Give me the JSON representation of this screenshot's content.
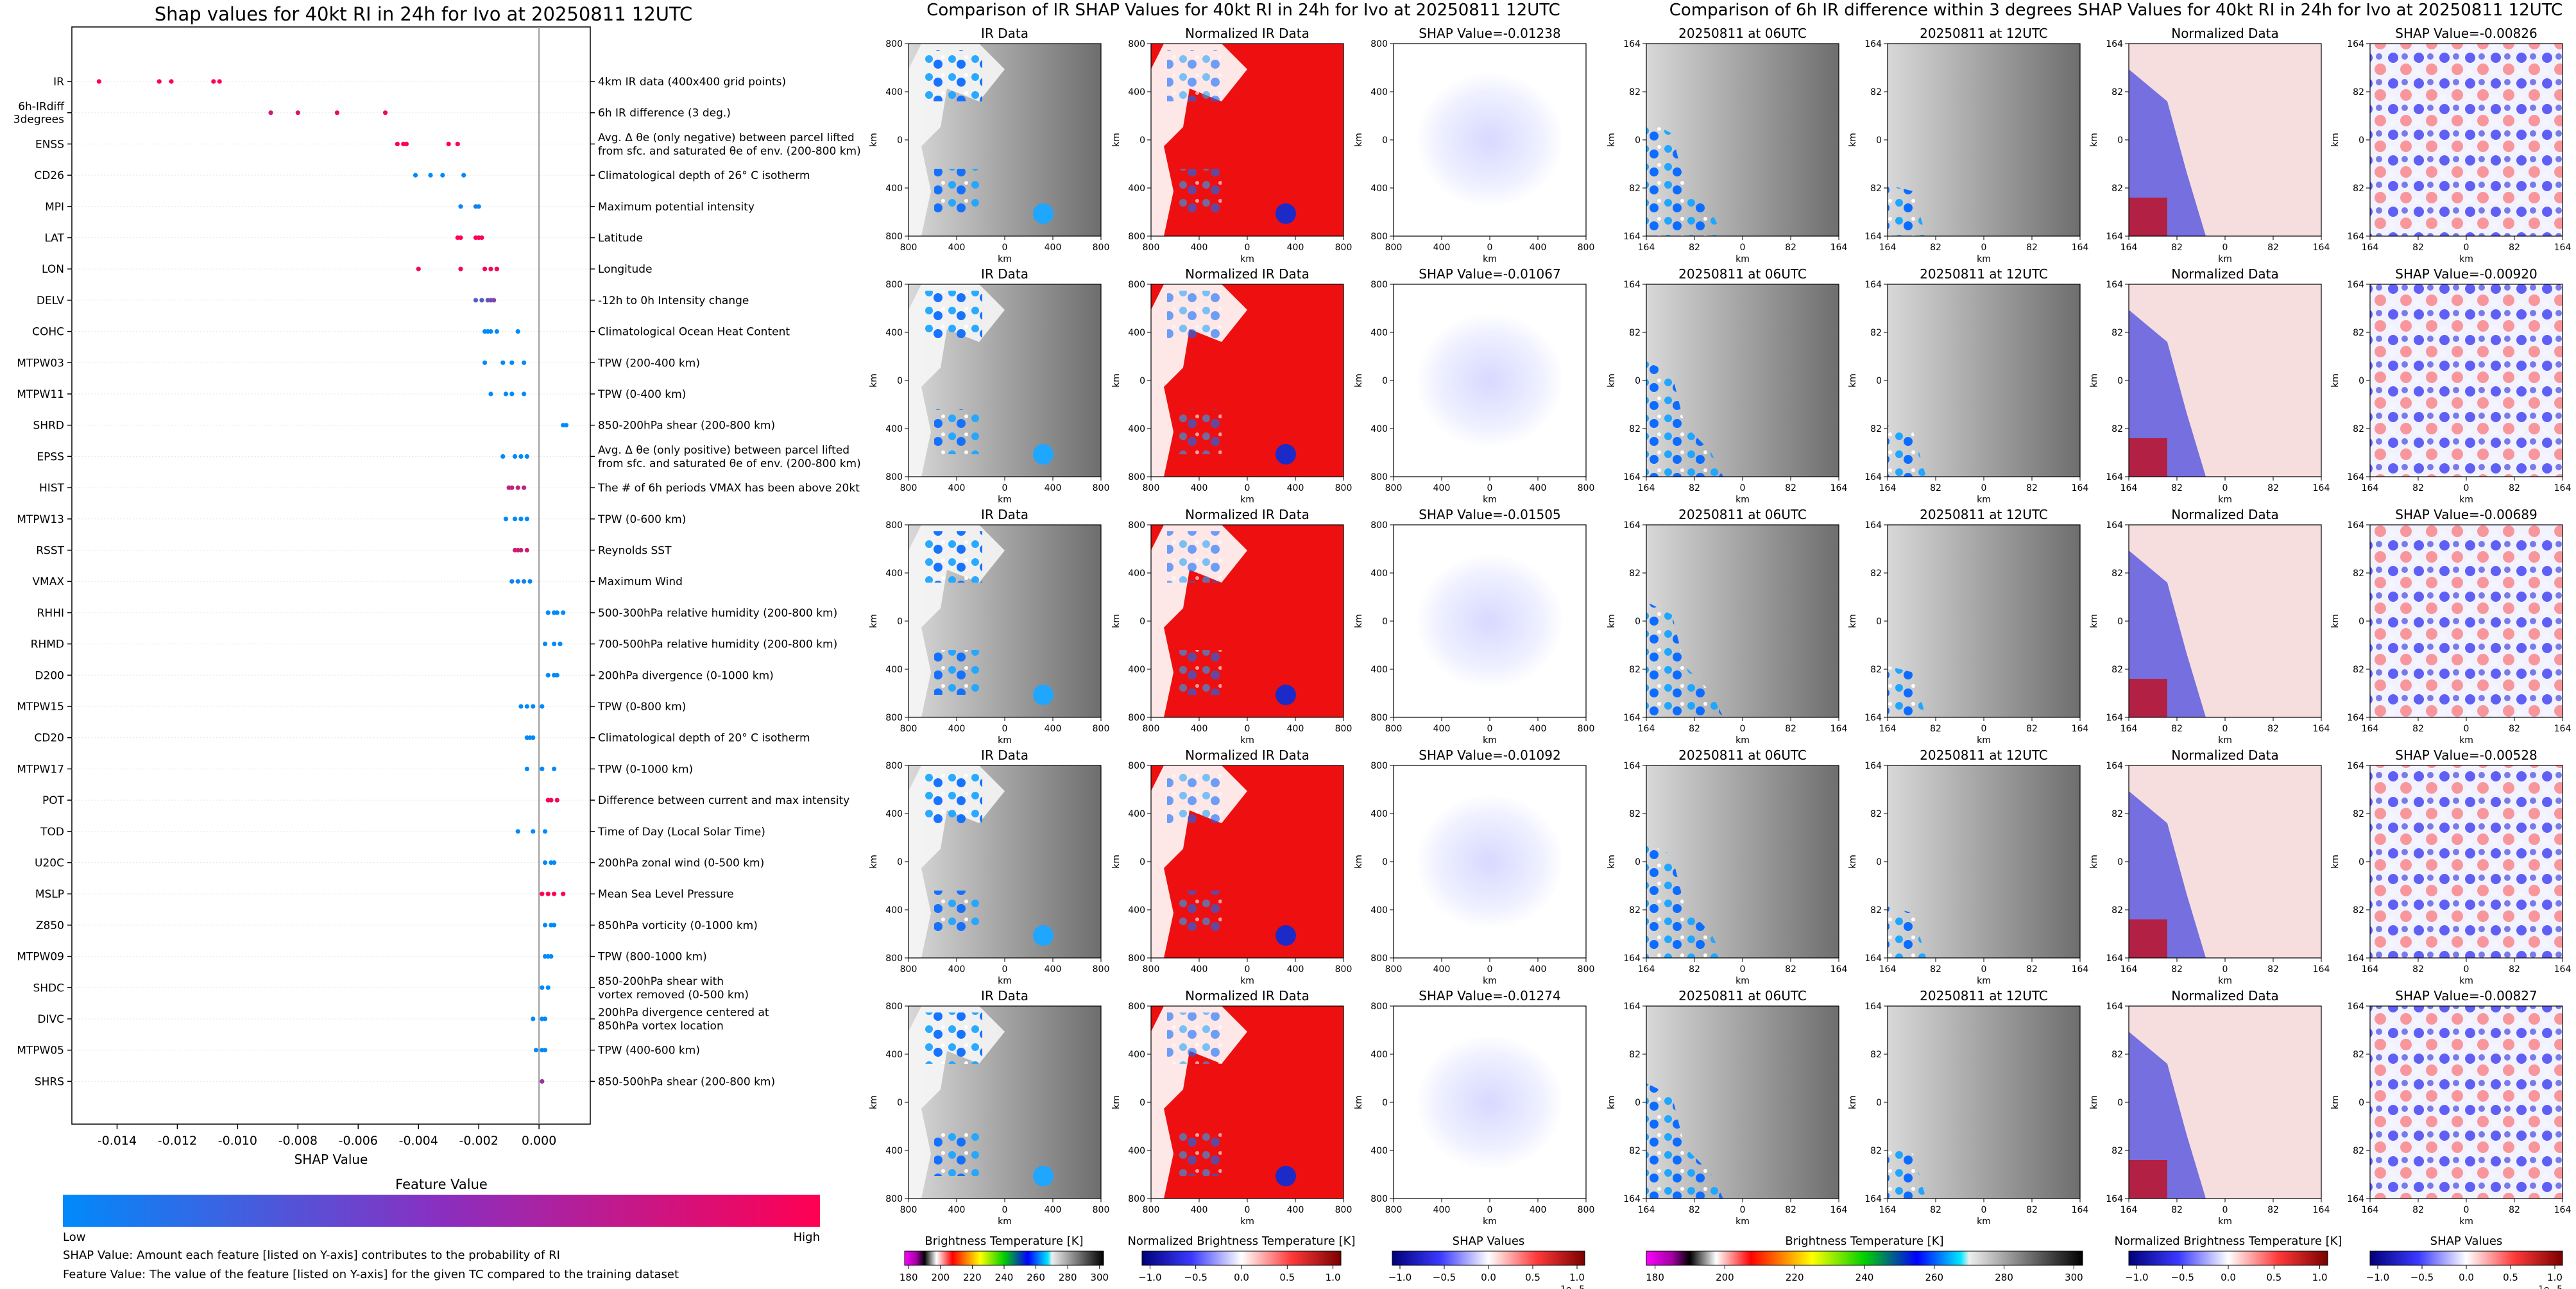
{
  "chart_data": [
    {
      "type": "scatter",
      "title": "Shap values for 40kt RI in 24h for Ivo at 20250811 12UTC",
      "xlabel": "SHAP Value",
      "xlim": [
        -0.0155,
        0.0017
      ],
      "xticks": [
        "-0.014",
        "-0.012",
        "-0.010",
        "-0.008",
        "-0.006",
        "-0.004",
        "-0.002",
        "0.000"
      ],
      "xtick_values": [
        -0.014,
        -0.012,
        -0.01,
        -0.008,
        -0.006,
        -0.004,
        -0.002,
        0.0
      ],
      "colorbar": {
        "title": "Feature Value",
        "low": "Low",
        "high": "High",
        "low_color": "#008afb",
        "high_color": "#ff0052"
      },
      "footnotes": [
        "SHAP Value: Amount each feature [listed on Y-axis] contributes to the probability of RI",
        "Feature Value: The value of the feature [listed on Y-axis] for the given TC compared to the training dataset"
      ],
      "features": [
        {
          "name": "IR",
          "desc": "4km IR data (400x400 grid points)",
          "points": [
            [
              -0.0146,
              1
            ],
            [
              -0.0126,
              1
            ],
            [
              -0.0122,
              1
            ],
            [
              -0.0108,
              1
            ],
            [
              -0.0106,
              1
            ]
          ]
        },
        {
          "name": "6h-IRdiff\n3degrees",
          "desc": "6h IR difference (3 deg.)",
          "points": [
            [
              -0.0089,
              0.8
            ],
            [
              -0.008,
              0.85
            ],
            [
              -0.0067,
              0.9
            ],
            [
              -0.0051,
              0.95
            ]
          ]
        },
        {
          "name": "ENSS",
          "desc": "Avg. Δ θe (only negative) between parcel lifted\nfrom sfc. and saturated θe of env. (200-800 km)",
          "points": [
            [
              -0.0047,
              1
            ],
            [
              -0.0045,
              1
            ],
            [
              -0.0044,
              1
            ],
            [
              -0.003,
              1
            ],
            [
              -0.0027,
              1
            ]
          ]
        },
        {
          "name": "CD26",
          "desc": "Climatological depth of 26° C isotherm",
          "points": [
            [
              -0.0041,
              0
            ],
            [
              -0.0036,
              0
            ],
            [
              -0.0032,
              0
            ],
            [
              -0.0025,
              0
            ]
          ]
        },
        {
          "name": "MPI",
          "desc": "Maximum potential intensity",
          "points": [
            [
              -0.0026,
              0.05
            ],
            [
              -0.0021,
              0.05
            ],
            [
              -0.002,
              0.05
            ]
          ]
        },
        {
          "name": "LAT",
          "desc": "Latitude",
          "points": [
            [
              -0.0027,
              1
            ],
            [
              -0.0026,
              1
            ],
            [
              -0.0021,
              1
            ],
            [
              -0.002,
              1
            ],
            [
              -0.0019,
              1
            ]
          ]
        },
        {
          "name": "LON",
          "desc": "Longitude",
          "points": [
            [
              -0.004,
              0.95
            ],
            [
              -0.0026,
              0.95
            ],
            [
              -0.0018,
              0.95
            ],
            [
              -0.0016,
              0.95
            ],
            [
              -0.0014,
              0.95
            ]
          ]
        },
        {
          "name": "DELV",
          "desc": "-12h to 0h Intensity change",
          "points": [
            [
              -0.0021,
              0.3
            ],
            [
              -0.0019,
              0.35
            ],
            [
              -0.0017,
              0.4
            ],
            [
              -0.0016,
              0.45
            ],
            [
              -0.0015,
              0.5
            ]
          ]
        },
        {
          "name": "COHC",
          "desc": "Climatological Ocean Heat Content",
          "points": [
            [
              -0.0018,
              0
            ],
            [
              -0.0017,
              0
            ],
            [
              -0.0016,
              0
            ],
            [
              -0.0014,
              0
            ],
            [
              -0.0007,
              0
            ]
          ]
        },
        {
          "name": "MTPW03",
          "desc": "TPW (200-400 km)",
          "points": [
            [
              -0.0018,
              0
            ],
            [
              -0.0012,
              0
            ],
            [
              -0.0009,
              0
            ],
            [
              -0.0005,
              0
            ]
          ]
        },
        {
          "name": "MTPW11",
          "desc": "TPW (0-400 km)",
          "points": [
            [
              -0.0016,
              0
            ],
            [
              -0.0011,
              0
            ],
            [
              -0.0009,
              0
            ],
            [
              -0.0005,
              0
            ]
          ]
        },
        {
          "name": "SHRD",
          "desc": "850-200hPa shear (200-800 km)",
          "points": [
            [
              0.0008,
              0
            ],
            [
              0.0009,
              0
            ]
          ]
        },
        {
          "name": "EPSS",
          "desc": "Avg. Δ θe (only positive) between parcel lifted\nfrom sfc. and saturated θe of env. (200-800 km)",
          "points": [
            [
              -0.0012,
              0
            ],
            [
              -0.0008,
              0
            ],
            [
              -0.0006,
              0
            ],
            [
              -0.0004,
              0
            ]
          ]
        },
        {
          "name": "HIST",
          "desc": "The # of 6h periods VMAX has been above 20kt",
          "points": [
            [
              -0.001,
              0.75
            ],
            [
              -0.0009,
              0.75
            ],
            [
              -0.0007,
              0.75
            ],
            [
              -0.0005,
              0.75
            ]
          ]
        },
        {
          "name": "MTPW13",
          "desc": "TPW (0-600 km)",
          "points": [
            [
              -0.0011,
              0
            ],
            [
              -0.0008,
              0
            ],
            [
              -0.0006,
              0
            ],
            [
              -0.0004,
              0
            ]
          ]
        },
        {
          "name": "RSST",
          "desc": "Reynolds SST",
          "points": [
            [
              -0.0008,
              0.8
            ],
            [
              -0.0007,
              0.8
            ],
            [
              -0.0006,
              0.8
            ],
            [
              -0.0004,
              0.8
            ]
          ]
        },
        {
          "name": "VMAX",
          "desc": "Maximum Wind",
          "points": [
            [
              -0.0009,
              0.05
            ],
            [
              -0.0007,
              0.05
            ],
            [
              -0.0005,
              0.05
            ],
            [
              -0.0003,
              0.05
            ]
          ]
        },
        {
          "name": "RHHI",
          "desc": "500-300hPa relative humidity (200-800 km)",
          "points": [
            [
              0.0003,
              0
            ],
            [
              0.0005,
              0
            ],
            [
              0.0006,
              0
            ],
            [
              0.0008,
              0
            ]
          ]
        },
        {
          "name": "RHMD",
          "desc": "700-500hPa relative humidity (200-800 km)",
          "points": [
            [
              0.0002,
              0
            ],
            [
              0.0005,
              0
            ],
            [
              0.0007,
              0
            ]
          ]
        },
        {
          "name": "D200",
          "desc": "200hPa divergence (0-1000 km)",
          "points": [
            [
              0.0003,
              0
            ],
            [
              0.0005,
              0
            ],
            [
              0.0006,
              0
            ]
          ]
        },
        {
          "name": "MTPW15",
          "desc": "TPW (0-800 km)",
          "points": [
            [
              -0.0006,
              0
            ],
            [
              -0.0004,
              0
            ],
            [
              -0.0002,
              0
            ],
            [
              0.0001,
              0
            ]
          ]
        },
        {
          "name": "CD20",
          "desc": "Climatological depth of 20° C isotherm",
          "points": [
            [
              -0.0004,
              0
            ],
            [
              -0.0003,
              0
            ],
            [
              -0.0002,
              0
            ]
          ]
        },
        {
          "name": "MTPW17",
          "desc": "TPW (0-1000 km)",
          "points": [
            [
              -0.0004,
              0
            ],
            [
              0.0001,
              0
            ],
            [
              0.0005,
              0
            ]
          ]
        },
        {
          "name": "POT",
          "desc": "Difference between current and max intensity",
          "points": [
            [
              0.0003,
              0.95
            ],
            [
              0.0004,
              0.95
            ],
            [
              0.0006,
              0.95
            ]
          ]
        },
        {
          "name": "TOD",
          "desc": "Time of Day (Local Solar Time)",
          "points": [
            [
              -0.0007,
              0
            ],
            [
              -0.0002,
              0
            ],
            [
              0.0002,
              0
            ]
          ]
        },
        {
          "name": "U20C",
          "desc": "200hPa zonal wind (0-500 km)",
          "points": [
            [
              0.0002,
              0
            ],
            [
              0.0004,
              0
            ],
            [
              0.0005,
              0
            ]
          ]
        },
        {
          "name": "MSLP",
          "desc": "Mean Sea Level Pressure",
          "points": [
            [
              0.0001,
              1
            ],
            [
              0.0003,
              1
            ],
            [
              0.0005,
              1
            ],
            [
              0.0008,
              1
            ]
          ]
        },
        {
          "name": "Z850",
          "desc": "850hPa vorticity (0-1000 km)",
          "points": [
            [
              0.0002,
              0
            ],
            [
              0.0004,
              0
            ],
            [
              0.0005,
              0
            ]
          ]
        },
        {
          "name": "MTPW09",
          "desc": "TPW (800-1000 km)",
          "points": [
            [
              0.0002,
              0
            ],
            [
              0.0003,
              0
            ],
            [
              0.0004,
              0
            ]
          ]
        },
        {
          "name": "SHDC",
          "desc": "850-200hPa shear with\nvortex removed (0-500 km)",
          "points": [
            [
              0.0001,
              0
            ],
            [
              0.0003,
              0
            ]
          ]
        },
        {
          "name": "DIVC",
          "desc": "200hPa divergence centered at\n850hPa vortex location",
          "points": [
            [
              -0.0002,
              0
            ],
            [
              0.0001,
              0
            ],
            [
              0.0002,
              0
            ]
          ]
        },
        {
          "name": "MTPW05",
          "desc": "TPW (400-600 km)",
          "points": [
            [
              -0.0001,
              0
            ],
            [
              0.0001,
              0
            ],
            [
              0.0002,
              0
            ]
          ]
        },
        {
          "name": "SHRS",
          "desc": "850-500hPa shear (200-800 km)",
          "points": [
            [
              0.0001,
              0.6
            ]
          ]
        }
      ]
    },
    {
      "type": "heatmap",
      "title": "Comparison of IR SHAP Values for 40kt RI in 24h for Ivo at 20250811 12UTC",
      "columns": [
        "IR Data",
        "Normalized IR Data",
        "SHAP Value"
      ],
      "rows": 5,
      "shap_values": [
        "SHAP Value=-0.01238",
        "SHAP Value=-0.01067",
        "SHAP Value=-0.01505",
        "SHAP Value=-0.01092",
        "SHAP Value=-0.01274"
      ],
      "axis_label": "km",
      "yticks": [
        "800",
        "400",
        "0",
        "400",
        "800"
      ],
      "xticks": [
        "800",
        "400",
        "0",
        "400",
        "800"
      ],
      "colorbars": [
        {
          "label": "Brightness Temperature [K]",
          "ticks": [
            "180",
            "200",
            "220",
            "240",
            "260",
            "280",
            "300"
          ]
        },
        {
          "label": "Normalized Brightness Temperature [K]",
          "ticks": [
            "−1.0",
            "−0.5",
            "0.0",
            "0.5",
            "1.0"
          ]
        },
        {
          "label": "SHAP Values",
          "ticks": [
            "−1.0",
            "−0.5",
            "0.0",
            "0.5",
            "1.0"
          ],
          "exponent": "1e−5"
        }
      ]
    },
    {
      "type": "heatmap",
      "title": "Comparison of 6h IR difference within 3 degrees SHAP Values for 40kt RI in 24h for Ivo at 20250811 12UTC",
      "columns": [
        "20250811 at 06UTC",
        "20250811 at 12UTC",
        "Normalized Data",
        "SHAP Value"
      ],
      "rows": 5,
      "shap_values": [
        "SHAP Value=-0.00826",
        "SHAP Value=-0.00920",
        "SHAP Value=-0.00689",
        "SHAP Value=-0.00528",
        "SHAP Value=-0.00827"
      ],
      "axis_label": "km",
      "yticks": [
        "164",
        "82",
        "0",
        "82",
        "164"
      ],
      "xticks": [
        "164",
        "82",
        "0",
        "82",
        "164"
      ],
      "colorbars": [
        {
          "label": "Brightness Temperature [K]",
          "ticks": [
            "180",
            "200",
            "220",
            "240",
            "260",
            "280",
            "300"
          ]
        },
        {
          "label": "Normalized Brightness Temperature [K]",
          "ticks": [
            "−1.0",
            "−0.5",
            "0.0",
            "0.5",
            "1.0"
          ]
        },
        {
          "label": "SHAP Values",
          "ticks": [
            "−1.0",
            "−0.5",
            "0.0",
            "0.5",
            "1.0"
          ],
          "exponent": "1e−5"
        }
      ]
    }
  ]
}
